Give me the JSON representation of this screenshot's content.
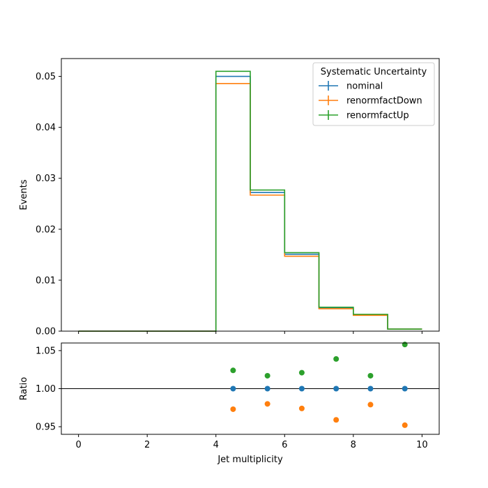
{
  "chart_data": [
    {
      "type": "line",
      "panel": "main",
      "drawstyle": "steps",
      "xlabel": "",
      "ylabel": "Events",
      "xlim": [
        -0.5,
        10.5
      ],
      "ylim": [
        0.0,
        0.0535
      ],
      "xticks": [
        0,
        2,
        4,
        6,
        8,
        10
      ],
      "xtick_labels_shown": false,
      "yticks": [
        0.0,
        0.01,
        0.02,
        0.03,
        0.04,
        0.05
      ],
      "ytick_labels": [
        "0.00",
        "0.01",
        "0.02",
        "0.03",
        "0.04",
        "0.05"
      ],
      "bin_edges": [
        0,
        1,
        2,
        3,
        4,
        5,
        6,
        7,
        8,
        9,
        10
      ],
      "legend": {
        "title": "Systematic Uncertainty",
        "placement": "top-right"
      },
      "series": [
        {
          "name": "nominal",
          "color": "#1f77b4",
          "values": [
            0,
            0,
            0,
            0,
            0.05,
            0.0272,
            0.0151,
            0.0045,
            0.0032,
            0.0004
          ]
        },
        {
          "name": "renormfactDown",
          "color": "#ff7f0e",
          "values": [
            0,
            0,
            0,
            0,
            0.0486,
            0.0267,
            0.0147,
            0.0044,
            0.0031,
            0.0004
          ]
        },
        {
          "name": "renormfactUp",
          "color": "#2ca02c",
          "values": [
            0,
            0,
            0,
            0,
            0.051,
            0.0277,
            0.0154,
            0.0047,
            0.0033,
            0.0004
          ]
        }
      ],
      "grid": false
    },
    {
      "type": "scatter",
      "panel": "ratio",
      "xlabel": "Jet multiplicity",
      "ylabel": "Ratio",
      "xlim": [
        -0.5,
        10.5
      ],
      "ylim": [
        0.94,
        1.06
      ],
      "xticks": [
        0,
        2,
        4,
        6,
        8,
        10
      ],
      "xtick_labels": [
        "0",
        "2",
        "4",
        "6",
        "8",
        "10"
      ],
      "yticks": [
        0.95,
        1.0,
        1.05
      ],
      "ytick_labels": [
        "0.95",
        "1.00",
        "1.05"
      ],
      "reference_line": 1.0,
      "x": [
        4.5,
        5.5,
        6.5,
        7.5,
        8.5,
        9.5
      ],
      "series": [
        {
          "name": "nominal",
          "color": "#1f77b4",
          "values": [
            1.0,
            1.0,
            1.0,
            1.0,
            1.0,
            1.0
          ]
        },
        {
          "name": "renormfactDown",
          "color": "#ff7f0e",
          "values": [
            0.973,
            0.98,
            0.974,
            0.959,
            0.979,
            0.952
          ]
        },
        {
          "name": "renormfactUp",
          "color": "#2ca02c",
          "values": [
            1.024,
            1.017,
            1.021,
            1.039,
            1.017,
            1.058
          ]
        }
      ],
      "grid": false
    }
  ]
}
